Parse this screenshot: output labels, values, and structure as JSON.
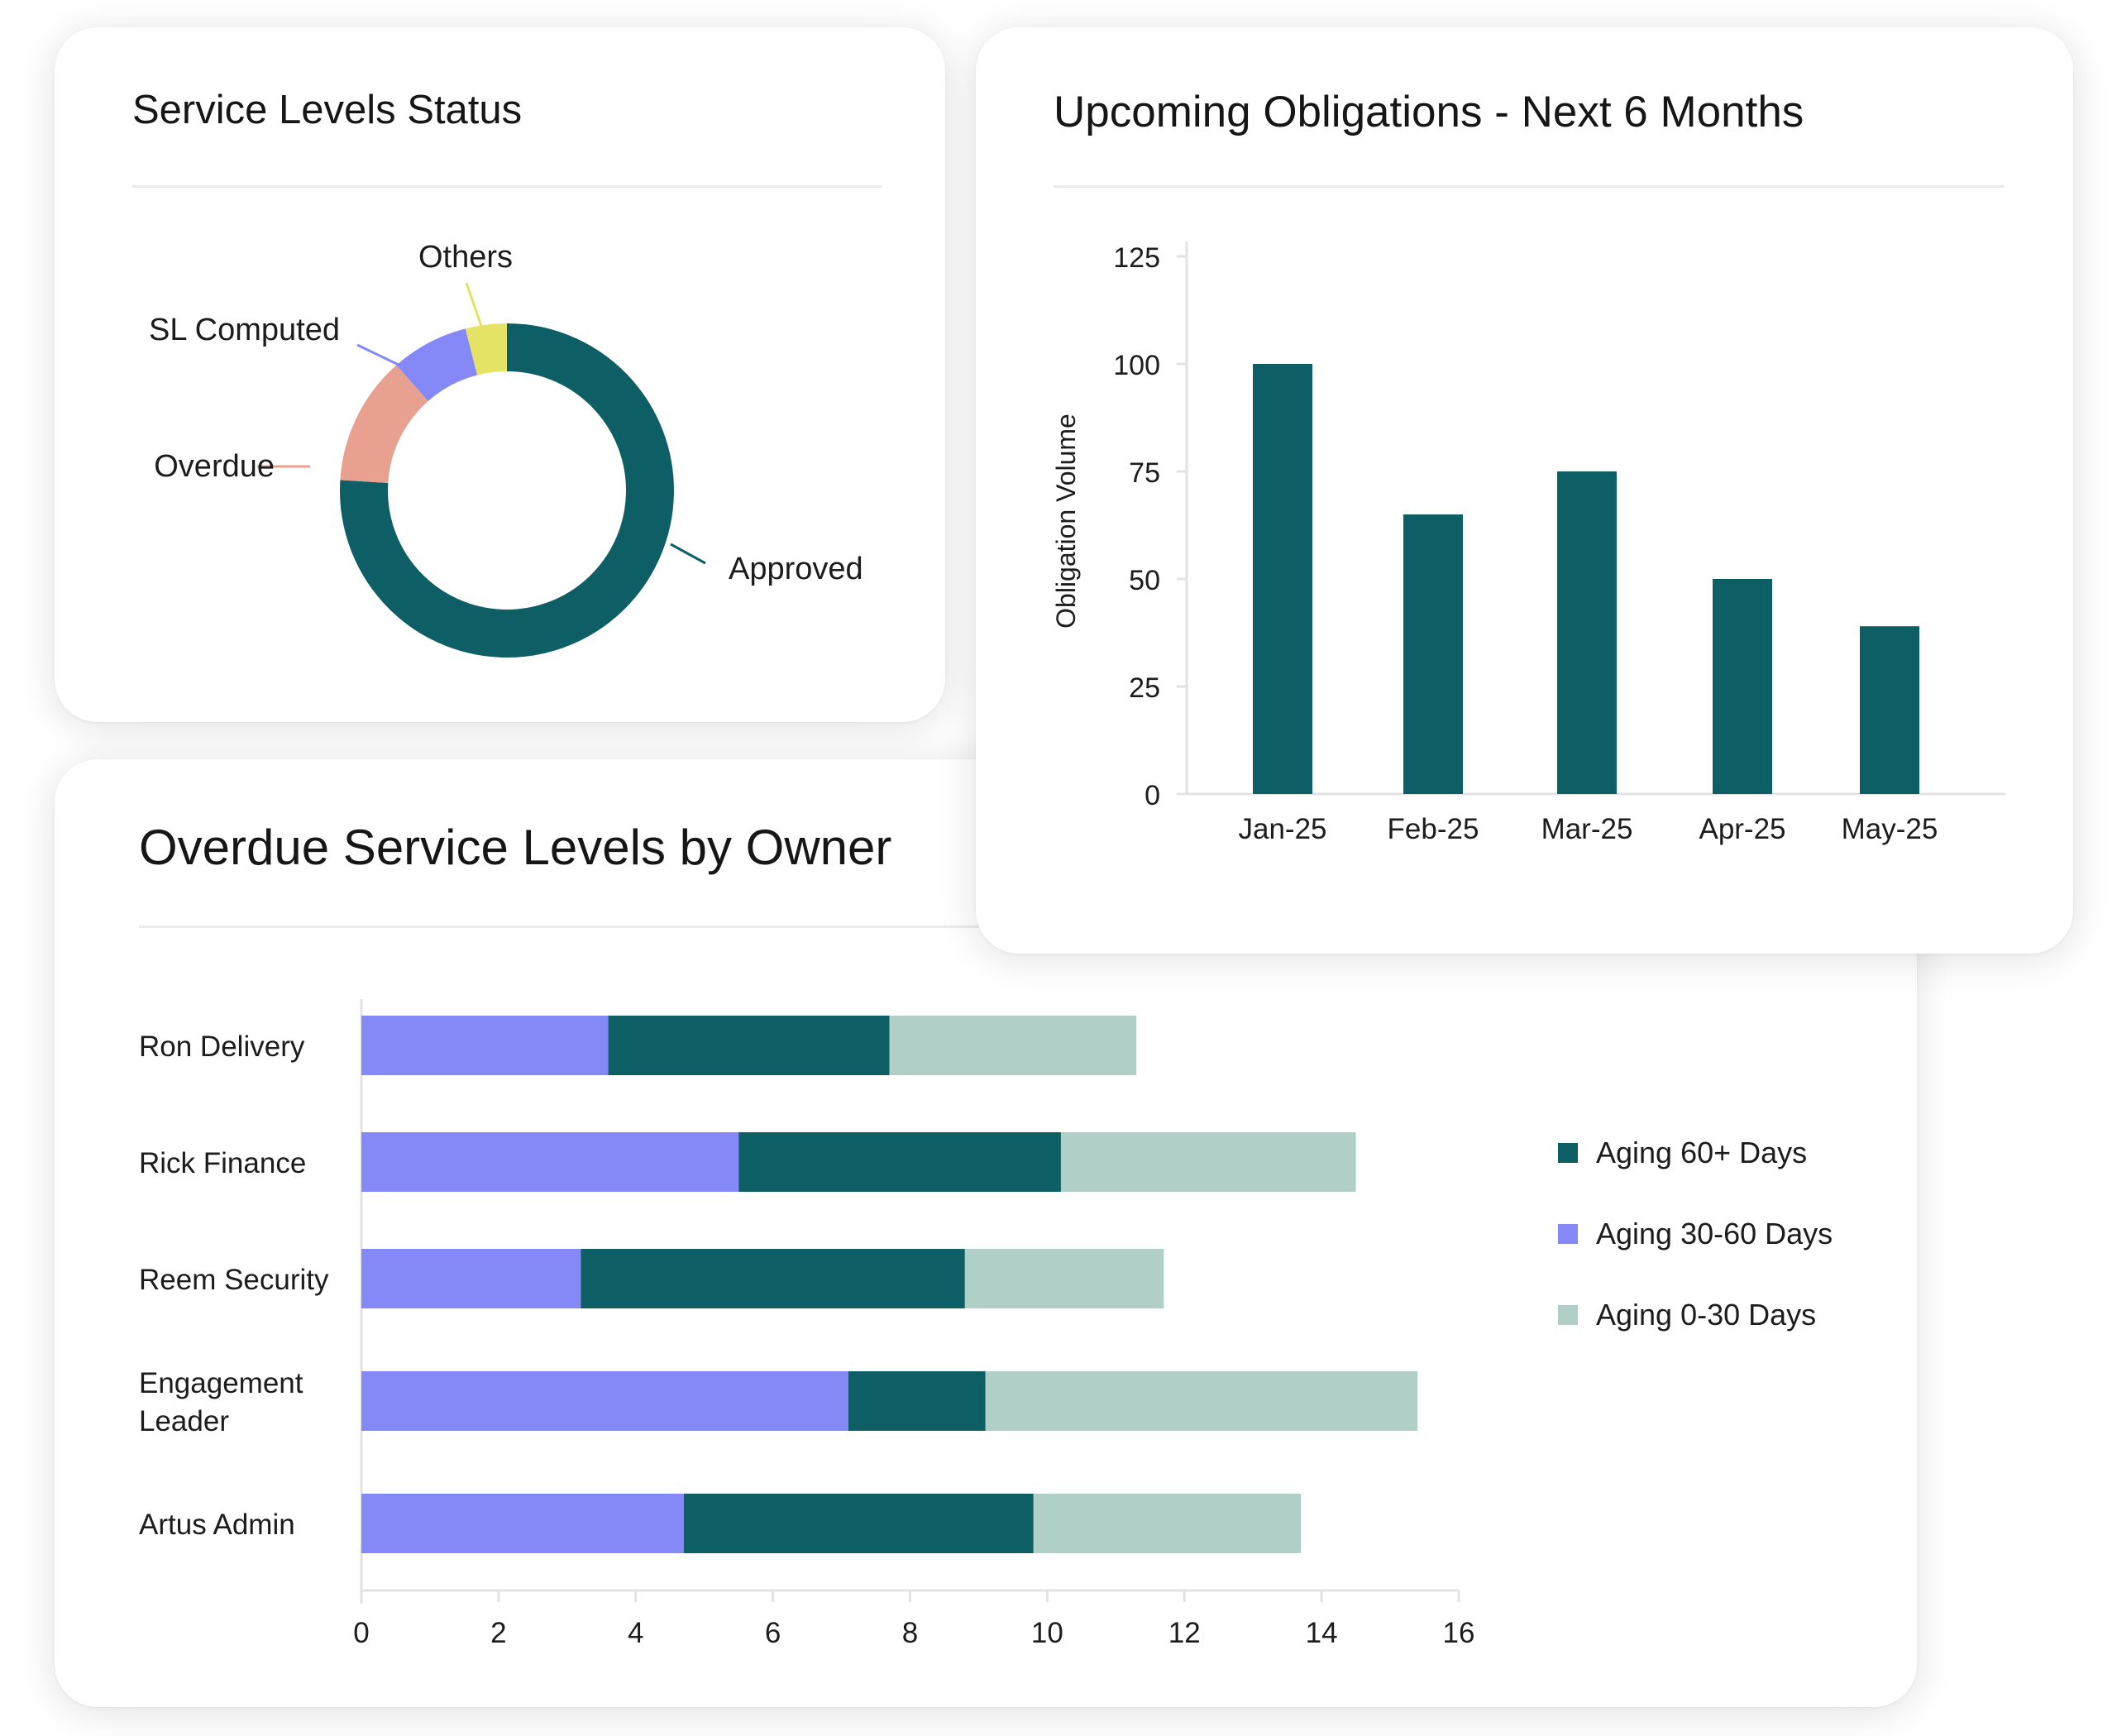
{
  "colors": {
    "teal": "#0e5f65",
    "periwinkle": "#8589f7",
    "salmon": "#e8a190",
    "yellow": "#e5e365",
    "sage": "#b0cfc7",
    "divider": "#ebebeb",
    "axis": "#e3e3e3"
  },
  "cards": {
    "status": {
      "title": "Service Levels Status"
    },
    "obligations": {
      "title": "Upcoming Obligations - Next 6 Months"
    },
    "overdue": {
      "title": "Overdue Service Levels by Owner"
    }
  },
  "chart_data": [
    {
      "id": "service-levels-status",
      "type": "pie",
      "variant": "donut",
      "title": "Service Levels Status",
      "slices": [
        {
          "label": "Approved",
          "value": 76,
          "color": "#0e5f65"
        },
        {
          "label": "Overdue",
          "value": 12.5,
          "color": "#e8a190"
        },
        {
          "label": "SL Computed",
          "value": 7.5,
          "color": "#8589f7"
        },
        {
          "label": "Others",
          "value": 4,
          "color": "#e5e365"
        }
      ]
    },
    {
      "id": "upcoming-obligations",
      "type": "bar",
      "title": "Upcoming Obligations - Next 6 Months",
      "categories": [
        "Jan-25",
        "Feb-25",
        "Mar-25",
        "Apr-25",
        "May-25"
      ],
      "values": [
        100,
        65,
        75,
        50,
        39
      ],
      "xlabel": "",
      "ylabel": "Obligation Volume",
      "ylim": [
        0,
        125
      ],
      "yticks": [
        0,
        25,
        50,
        75,
        100,
        125
      ],
      "grid": false,
      "color": "#0e5f65"
    },
    {
      "id": "overdue-by-owner",
      "type": "bar",
      "orientation": "horizontal",
      "stacked": true,
      "title": "Overdue Service Levels by Owner",
      "categories": [
        "Ron Delivery",
        "Rick Finance",
        "Reem Security",
        "Engagement Leader",
        "Artus Admin"
      ],
      "series": [
        {
          "name": "Aging 30-60 Days",
          "color": "#8589f7",
          "values": [
            3.6,
            5.5,
            3.2,
            7.1,
            4.7
          ]
        },
        {
          "name": "Aging 60+ Days",
          "color": "#0e5f65",
          "values": [
            4.1,
            4.7,
            5.6,
            2.0,
            5.1
          ]
        },
        {
          "name": "Aging 0-30 Days",
          "color": "#b0cfc7",
          "values": [
            3.6,
            4.3,
            2.9,
            6.3,
            3.9
          ]
        }
      ],
      "legend": [
        "Aging 60+ Days",
        "Aging 30-60 Days",
        "Aging 0-30 Days"
      ],
      "legend_position": "right",
      "xlim": [
        0,
        16
      ],
      "xticks": [
        0,
        2,
        4,
        6,
        8,
        10,
        12,
        14,
        16
      ],
      "grid": false
    }
  ]
}
